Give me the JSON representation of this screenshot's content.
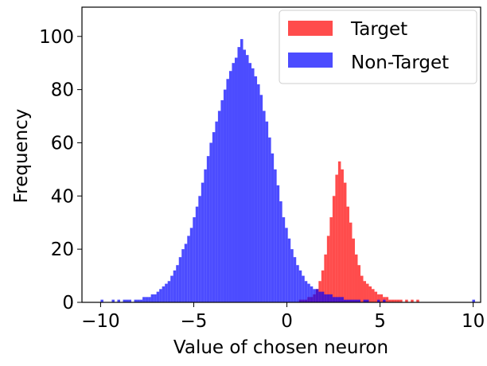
{
  "chart_data": {
    "type": "histogram",
    "title": "",
    "xlabel": "Value of chosen neuron",
    "ylabel": "Frequency",
    "xlim": [
      -11.0,
      10.4
    ],
    "ylim": [
      0,
      111
    ],
    "xticks": [
      -10,
      -5,
      0,
      5,
      10
    ],
    "xtick_labels": [
      "−10",
      "−5",
      "0",
      "5",
      "10"
    ],
    "yticks": [
      0,
      20,
      40,
      60,
      80,
      100
    ],
    "ytick_labels": [
      "0",
      "20",
      "40",
      "60",
      "80",
      "100"
    ],
    "bin_width": 0.15,
    "legend": {
      "placement": "top-right"
    },
    "series": [
      {
        "name": "Target",
        "color": "#ff0000",
        "alpha": 0.7,
        "bins_start": 0.5,
        "values": [
          0,
          1,
          1,
          1,
          2,
          2,
          3,
          5,
          8,
          12,
          18,
          25,
          32,
          40,
          48,
          53,
          50,
          45,
          36,
          30,
          24,
          18,
          14,
          10,
          8,
          7,
          6,
          5,
          4,
          3,
          3,
          2,
          2,
          1,
          1,
          1,
          1,
          1,
          0,
          1,
          0,
          1,
          0,
          1
        ]
      },
      {
        "name": "Non-Target",
        "color": "#0000ff",
        "alpha": 0.7,
        "bins_start": -10.0,
        "values": [
          1,
          0,
          0,
          0,
          1,
          0,
          1,
          0,
          1,
          1,
          1,
          0,
          1,
          1,
          1,
          2,
          2,
          2,
          3,
          3,
          4,
          5,
          6,
          7,
          8,
          10,
          12,
          14,
          17,
          20,
          22,
          25,
          28,
          32,
          36,
          40,
          45,
          50,
          55,
          60,
          64,
          68,
          72,
          76,
          80,
          84,
          87,
          90,
          92,
          96,
          99,
          95,
          93,
          90,
          88,
          85,
          82,
          78,
          72,
          68,
          62,
          56,
          50,
          44,
          38,
          32,
          28,
          24,
          20,
          17,
          14,
          12,
          10,
          8,
          7,
          6,
          5,
          5,
          4,
          4,
          3,
          3,
          3,
          2,
          2,
          2,
          2,
          1,
          1,
          1,
          1,
          1,
          1,
          0,
          1,
          1,
          0,
          0,
          0,
          1,
          0,
          1,
          0,
          0,
          0,
          0,
          0,
          0,
          0,
          0,
          0,
          0,
          0,
          0,
          0,
          0,
          0,
          0,
          0,
          0,
          0,
          0,
          0,
          0,
          0,
          0,
          0,
          0,
          0,
          0,
          0,
          0,
          0,
          1
        ]
      }
    ]
  }
}
